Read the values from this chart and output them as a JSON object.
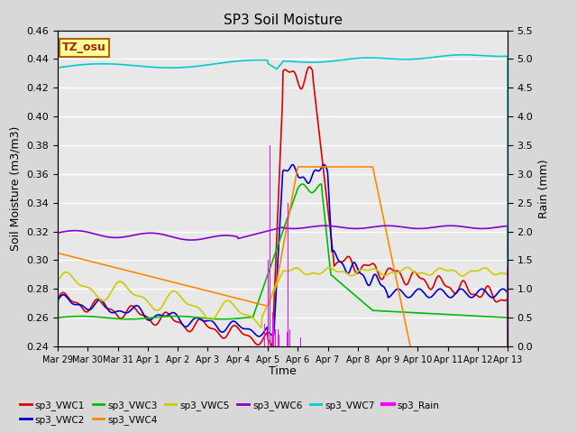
{
  "title": "SP3 Soil Moisture",
  "xlabel": "Time",
  "ylabel_left": "Soil Moisture (m3/m3)",
  "ylabel_right": "Rain (mm)",
  "ylim_left": [
    0.24,
    0.46
  ],
  "ylim_right": [
    0.0,
    5.5
  ],
  "background_color": "#e8e8e8",
  "grid_color": "#ffffff",
  "annotation_text": "TZ_osu",
  "annotation_bg": "#ffff99",
  "annotation_border": "#aa6600",
  "xtick_labels": [
    "Mar 29",
    "Mar 30",
    "Mar 31",
    "Apr 1",
    "Apr 2",
    "Apr 3",
    "Apr 4",
    "Apr 5",
    "Apr 6",
    "Apr 7",
    "Apr 8",
    "Apr 9",
    "Apr 10",
    "Apr 11",
    "Apr 12",
    "Apr 13"
  ],
  "yticks_left": [
    0.24,
    0.26,
    0.28,
    0.3,
    0.32,
    0.34,
    0.36,
    0.38,
    0.4,
    0.42,
    0.44,
    0.46
  ],
  "yticks_right": [
    0.0,
    0.5,
    1.0,
    1.5,
    2.0,
    2.5,
    3.0,
    3.5,
    4.0,
    4.5,
    5.0,
    5.5
  ],
  "series_colors": {
    "sp3_VWC1": "#dd0000",
    "sp3_VWC2": "#0000cc",
    "sp3_VWC3": "#00bb00",
    "sp3_VWC4": "#ff8800",
    "sp3_VWC5": "#cccc00",
    "sp3_VWC6": "#8800cc",
    "sp3_VWC7": "#00cccc",
    "sp3_Rain": "#ff00ff"
  }
}
